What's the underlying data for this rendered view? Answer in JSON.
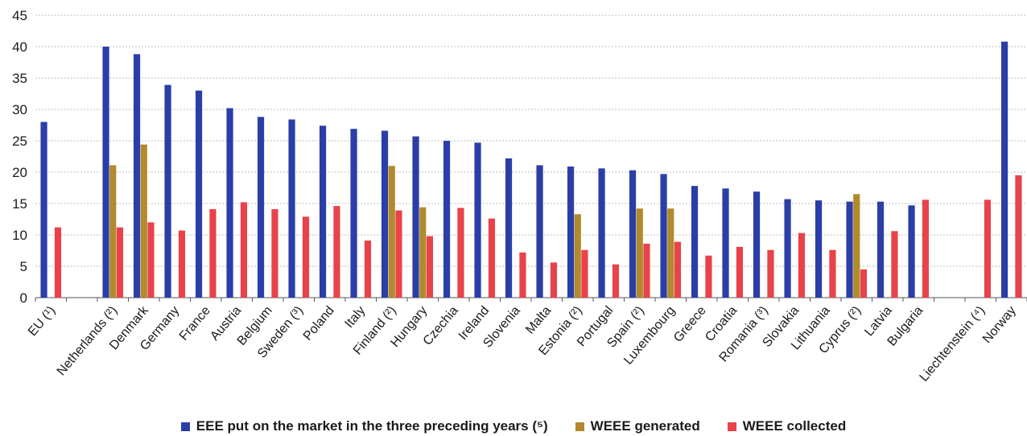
{
  "chart_data": {
    "type": "bar",
    "categories": [
      "EU (¹)",
      "",
      "Netherlands (²)",
      "Denmark",
      "Germany",
      "France",
      "Austria",
      "Belgium",
      "Sweden (³)",
      "Poland",
      "Italy",
      "Finland (²)",
      "Hungary",
      "Czechia",
      "Ireland",
      "Slovenia",
      "Malta",
      "Estonia (²)",
      "Portugal",
      "Spain (²)",
      "Luxembourg",
      "Greece",
      "Croatia",
      "Romania (³)",
      "Slovakia",
      "Lithuania",
      "Cyprus (²)",
      "Latvia",
      "Bulgaria",
      "",
      "Liechtenstein (⁴)",
      "Norway"
    ],
    "series": [
      {
        "name": "EEE put on the market in the three preceding years (⁵)",
        "color": "#2b3ea8",
        "values": [
          28.0,
          null,
          40.0,
          38.8,
          33.9,
          33.0,
          30.2,
          28.8,
          28.4,
          27.4,
          26.9,
          26.6,
          25.7,
          25.0,
          24.7,
          22.2,
          21.1,
          20.9,
          20.6,
          20.3,
          19.7,
          17.8,
          17.4,
          16.9,
          15.7,
          15.5,
          15.3,
          15.3,
          14.7,
          null,
          null,
          40.8
        ]
      },
      {
        "name": "WEEE generated",
        "color": "#b08a2c",
        "values": [
          null,
          null,
          21.1,
          24.4,
          null,
          null,
          null,
          null,
          null,
          null,
          null,
          21.0,
          14.4,
          null,
          null,
          null,
          null,
          13.3,
          null,
          14.2,
          14.2,
          null,
          null,
          null,
          null,
          null,
          16.5,
          null,
          null,
          null,
          null,
          null
        ]
      },
      {
        "name": "WEEE collected",
        "color": "#e8434a",
        "values": [
          11.2,
          null,
          11.2,
          12.0,
          10.7,
          14.1,
          15.2,
          14.1,
          12.9,
          14.6,
          9.1,
          13.9,
          9.8,
          14.3,
          12.6,
          7.2,
          5.6,
          7.6,
          5.3,
          8.6,
          8.9,
          6.7,
          8.1,
          7.6,
          10.3,
          7.6,
          4.5,
          10.6,
          15.6,
          null,
          15.6,
          19.5
        ]
      }
    ],
    "ylim": [
      0,
      45
    ],
    "yticks": [
      0,
      5,
      10,
      15,
      20,
      25,
      30,
      35,
      40,
      45
    ],
    "grid": "horizontal dashed",
    "legend_position": "bottom"
  },
  "legend": {
    "items": [
      {
        "label": "EEE put on the market in the three preceding years (⁵)",
        "color": "#2b3ea8"
      },
      {
        "label": "WEEE generated",
        "color": "#b08a2c"
      },
      {
        "label": "WEEE collected",
        "color": "#e8434a"
      }
    ]
  }
}
